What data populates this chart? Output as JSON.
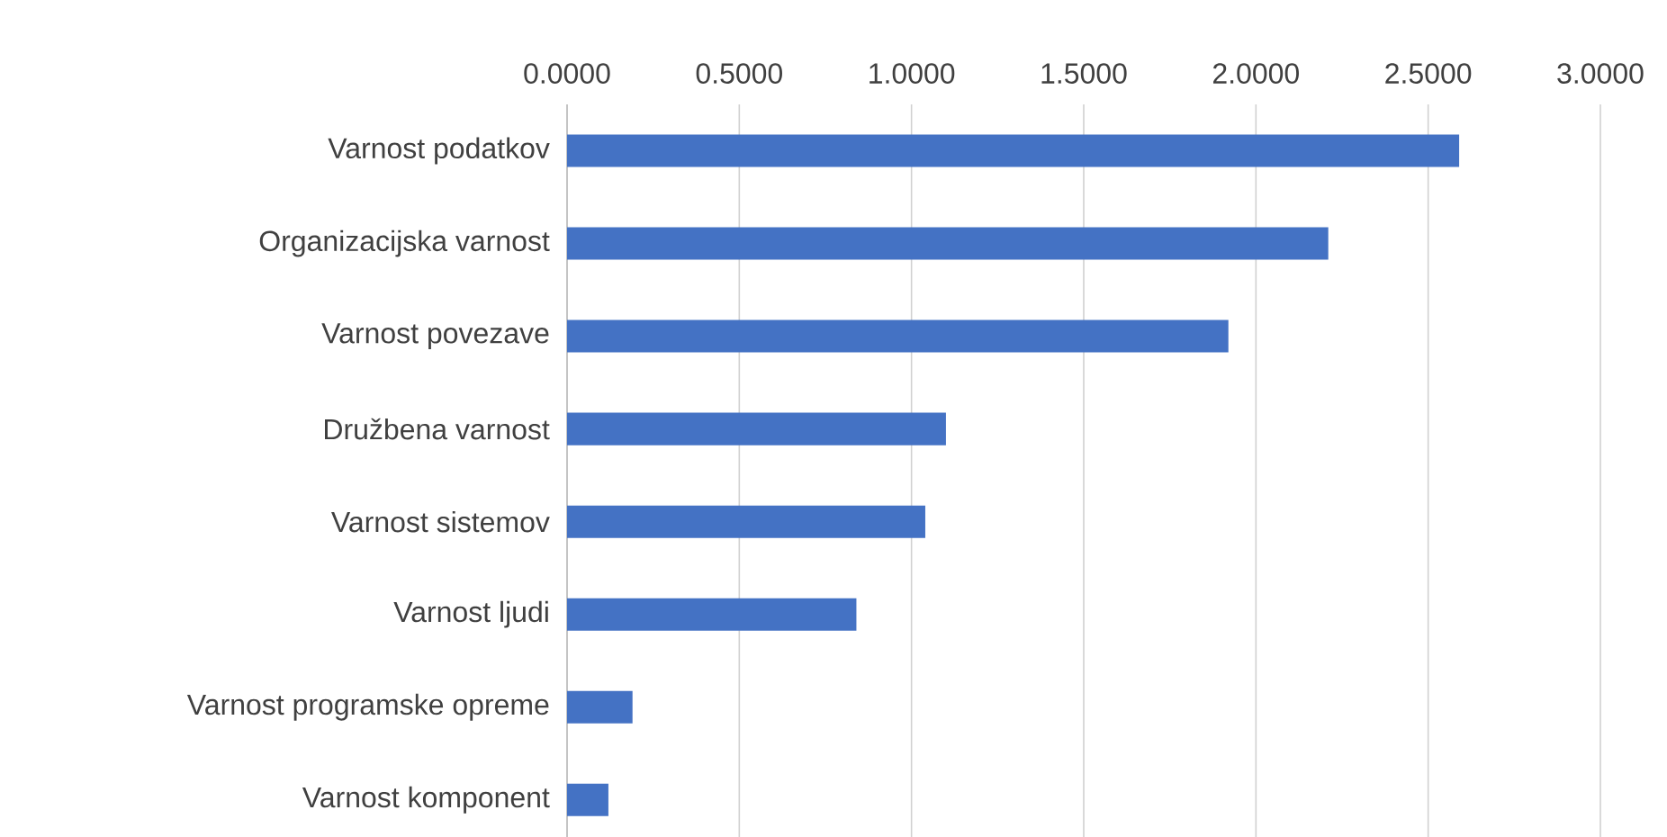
{
  "chart_data": {
    "type": "bar",
    "orientation": "horizontal",
    "categories": [
      "Varnost podatkov",
      "Organizacijska varnost",
      "Varnost povezave",
      "Družbena varnost",
      "Varnost sistemov",
      "Varnost ljudi",
      "Varnost programske opreme",
      "Varnost komponent"
    ],
    "values": [
      2.59,
      2.21,
      1.92,
      1.1,
      1.04,
      0.84,
      0.19,
      0.12
    ],
    "color": "#4472c4",
    "xlim": [
      0,
      3
    ],
    "xticks": [
      {
        "value": 0,
        "label": "0.0000"
      },
      {
        "value": 0.5,
        "label": "0.5000"
      },
      {
        "value": 1,
        "label": "1.0000"
      },
      {
        "value": 1.5,
        "label": "1.5000"
      },
      {
        "value": 2,
        "label": "2.0000"
      },
      {
        "value": 2.5,
        "label": "2.5000"
      },
      {
        "value": 3,
        "label": "3.0000"
      }
    ],
    "grid": "x"
  }
}
